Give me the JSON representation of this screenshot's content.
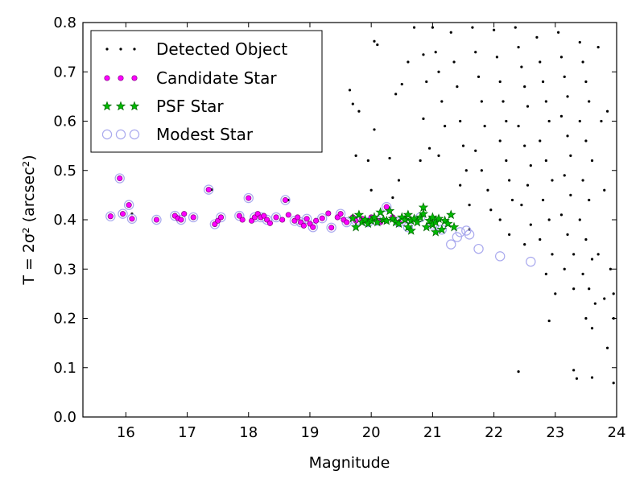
{
  "chart_data": {
    "type": "scatter",
    "xlabel": "Magnitude",
    "ylabel": "T = 2σ² (arcsec²)",
    "xlim": [
      15.3,
      24
    ],
    "ylim": [
      0.0,
      0.8
    ],
    "xticks": [
      "16",
      "17",
      "18",
      "19",
      "20",
      "21",
      "22",
      "23",
      "24"
    ],
    "yticks": [
      "0.0",
      "0.1",
      "0.2",
      "0.3",
      "0.4",
      "0.5",
      "0.6",
      "0.7",
      "0.8"
    ],
    "legend_position": "top-left",
    "grid": false,
    "series": [
      {
        "name": "Detected Object",
        "marker": "dot",
        "color": "#000000",
        "points": [
          [
            15.9,
            0.484
          ],
          [
            16.1,
            0.412
          ],
          [
            17.4,
            0.461
          ],
          [
            18.0,
            0.444
          ],
          [
            18.65,
            0.44
          ],
          [
            19.65,
            0.663
          ],
          [
            19.7,
            0.635
          ],
          [
            19.8,
            0.62
          ],
          [
            19.75,
            0.53
          ],
          [
            19.95,
            0.52
          ],
          [
            20.05,
            0.762
          ],
          [
            20.1,
            0.755
          ],
          [
            20.05,
            0.583
          ],
          [
            20.0,
            0.46
          ],
          [
            20.35,
            0.445
          ],
          [
            20.3,
            0.525
          ],
          [
            20.4,
            0.655
          ],
          [
            20.5,
            0.675
          ],
          [
            20.6,
            0.72
          ],
          [
            20.45,
            0.48
          ],
          [
            20.7,
            0.79
          ],
          [
            20.85,
            0.735
          ],
          [
            20.9,
            0.68
          ],
          [
            20.85,
            0.605
          ],
          [
            20.95,
            0.545
          ],
          [
            20.8,
            0.52
          ],
          [
            21.0,
            0.79
          ],
          [
            21.05,
            0.74
          ],
          [
            21.1,
            0.7
          ],
          [
            21.15,
            0.64
          ],
          [
            21.2,
            0.59
          ],
          [
            21.1,
            0.53
          ],
          [
            21.3,
            0.78
          ],
          [
            21.35,
            0.72
          ],
          [
            21.4,
            0.67
          ],
          [
            21.45,
            0.6
          ],
          [
            21.5,
            0.55
          ],
          [
            21.55,
            0.5
          ],
          [
            21.45,
            0.47
          ],
          [
            21.6,
            0.43
          ],
          [
            21.65,
            0.79
          ],
          [
            21.7,
            0.74
          ],
          [
            21.75,
            0.69
          ],
          [
            21.8,
            0.64
          ],
          [
            21.85,
            0.59
          ],
          [
            21.7,
            0.54
          ],
          [
            21.8,
            0.5
          ],
          [
            21.9,
            0.46
          ],
          [
            21.95,
            0.42
          ],
          [
            21.6,
            0.38
          ],
          [
            22.0,
            0.785
          ],
          [
            22.05,
            0.73
          ],
          [
            22.1,
            0.68
          ],
          [
            22.15,
            0.64
          ],
          [
            22.2,
            0.6
          ],
          [
            22.1,
            0.56
          ],
          [
            22.2,
            0.52
          ],
          [
            22.25,
            0.48
          ],
          [
            22.3,
            0.44
          ],
          [
            22.1,
            0.4
          ],
          [
            22.25,
            0.37
          ],
          [
            22.35,
            0.79
          ],
          [
            22.4,
            0.75
          ],
          [
            22.45,
            0.71
          ],
          [
            22.5,
            0.67
          ],
          [
            22.55,
            0.63
          ],
          [
            22.4,
            0.59
          ],
          [
            22.5,
            0.55
          ],
          [
            22.6,
            0.51
          ],
          [
            22.55,
            0.47
          ],
          [
            22.45,
            0.43
          ],
          [
            22.6,
            0.39
          ],
          [
            22.5,
            0.35
          ],
          [
            22.7,
            0.77
          ],
          [
            22.75,
            0.72
          ],
          [
            22.8,
            0.68
          ],
          [
            22.85,
            0.64
          ],
          [
            22.9,
            0.6
          ],
          [
            22.75,
            0.56
          ],
          [
            22.85,
            0.52
          ],
          [
            22.95,
            0.48
          ],
          [
            22.8,
            0.44
          ],
          [
            22.9,
            0.4
          ],
          [
            22.75,
            0.36
          ],
          [
            22.95,
            0.33
          ],
          [
            22.85,
            0.29
          ],
          [
            23.0,
            0.25
          ],
          [
            23.05,
            0.78
          ],
          [
            23.1,
            0.73
          ],
          [
            23.15,
            0.69
          ],
          [
            23.2,
            0.65
          ],
          [
            23.1,
            0.61
          ],
          [
            23.2,
            0.57
          ],
          [
            23.25,
            0.53
          ],
          [
            23.15,
            0.49
          ],
          [
            23.25,
            0.45
          ],
          [
            23.1,
            0.41
          ],
          [
            23.2,
            0.37
          ],
          [
            23.3,
            0.33
          ],
          [
            23.15,
            0.3
          ],
          [
            23.3,
            0.26
          ],
          [
            23.4,
            0.76
          ],
          [
            23.45,
            0.72
          ],
          [
            23.5,
            0.68
          ],
          [
            23.55,
            0.64
          ],
          [
            23.4,
            0.6
          ],
          [
            23.5,
            0.56
          ],
          [
            23.6,
            0.52
          ],
          [
            23.45,
            0.48
          ],
          [
            23.55,
            0.44
          ],
          [
            23.4,
            0.4
          ],
          [
            23.5,
            0.36
          ],
          [
            23.6,
            0.32
          ],
          [
            23.45,
            0.29
          ],
          [
            23.55,
            0.26
          ],
          [
            23.65,
            0.23
          ],
          [
            23.5,
            0.2
          ],
          [
            23.6,
            0.18
          ],
          [
            23.7,
            0.75
          ],
          [
            23.75,
            0.6
          ],
          [
            23.8,
            0.46
          ],
          [
            23.7,
            0.33
          ],
          [
            23.8,
            0.24
          ],
          [
            23.85,
            0.62
          ],
          [
            23.9,
            0.3
          ],
          [
            23.95,
            0.2
          ],
          [
            23.95,
            0.25
          ],
          [
            22.9,
            0.195
          ],
          [
            22.4,
            0.092
          ],
          [
            23.35,
            0.078
          ],
          [
            23.6,
            0.08
          ],
          [
            23.95,
            0.069
          ],
          [
            23.3,
            0.095
          ],
          [
            23.85,
            0.14
          ]
        ]
      },
      {
        "name": "Candidate Star",
        "marker": "circle",
        "color": "#ff00ff",
        "points": [
          [
            15.75,
            0.407
          ],
          [
            15.9,
            0.484
          ],
          [
            15.95,
            0.412
          ],
          [
            16.05,
            0.43
          ],
          [
            16.1,
            0.402
          ],
          [
            16.5,
            0.4
          ],
          [
            16.8,
            0.408
          ],
          [
            16.85,
            0.403
          ],
          [
            16.9,
            0.4
          ],
          [
            16.95,
            0.412
          ],
          [
            17.1,
            0.405
          ],
          [
            17.35,
            0.461
          ],
          [
            17.45,
            0.391
          ],
          [
            17.5,
            0.398
          ],
          [
            17.55,
            0.405
          ],
          [
            17.85,
            0.408
          ],
          [
            17.9,
            0.4
          ],
          [
            18.0,
            0.444
          ],
          [
            18.05,
            0.398
          ],
          [
            18.1,
            0.405
          ],
          [
            18.15,
            0.412
          ],
          [
            18.2,
            0.405
          ],
          [
            18.25,
            0.408
          ],
          [
            18.3,
            0.4
          ],
          [
            18.35,
            0.393
          ],
          [
            18.45,
            0.405
          ],
          [
            18.55,
            0.4
          ],
          [
            18.6,
            0.44
          ],
          [
            18.65,
            0.41
          ],
          [
            18.75,
            0.398
          ],
          [
            18.8,
            0.405
          ],
          [
            18.85,
            0.395
          ],
          [
            18.9,
            0.388
          ],
          [
            18.95,
            0.402
          ],
          [
            19.0,
            0.392
          ],
          [
            19.05,
            0.385
          ],
          [
            19.1,
            0.398
          ],
          [
            19.2,
            0.403
          ],
          [
            19.3,
            0.413
          ],
          [
            19.35,
            0.384
          ],
          [
            19.45,
            0.405
          ],
          [
            19.5,
            0.412
          ],
          [
            19.55,
            0.4
          ],
          [
            19.6,
            0.395
          ],
          [
            19.7,
            0.405
          ],
          [
            19.75,
            0.398
          ],
          [
            19.85,
            0.402
          ],
          [
            19.95,
            0.395
          ],
          [
            20.0,
            0.405
          ],
          [
            20.1,
            0.398
          ],
          [
            20.15,
            0.395
          ],
          [
            20.25,
            0.426
          ],
          [
            20.35,
            0.405
          ],
          [
            20.45,
            0.395
          ],
          [
            20.55,
            0.4
          ]
        ]
      },
      {
        "name": "PSF Star",
        "marker": "star",
        "color": "#00aa00",
        "points": [
          [
            19.7,
            0.403
          ],
          [
            19.75,
            0.385
          ],
          [
            19.8,
            0.41
          ],
          [
            19.85,
            0.395
          ],
          [
            19.9,
            0.4
          ],
          [
            19.95,
            0.392
          ],
          [
            20.0,
            0.398
          ],
          [
            20.05,
            0.405
          ],
          [
            20.1,
            0.395
          ],
          [
            20.15,
            0.415
          ],
          [
            20.2,
            0.4
          ],
          [
            20.25,
            0.398
          ],
          [
            20.3,
            0.418
          ],
          [
            20.35,
            0.402
          ],
          [
            20.4,
            0.395
          ],
          [
            20.45,
            0.392
          ],
          [
            20.5,
            0.405
          ],
          [
            20.55,
            0.4
          ],
          [
            20.6,
            0.385
          ],
          [
            20.6,
            0.41
          ],
          [
            20.65,
            0.398
          ],
          [
            20.7,
            0.402
          ],
          [
            20.75,
            0.395
          ],
          [
            20.8,
            0.405
          ],
          [
            20.85,
            0.412
          ],
          [
            20.85,
            0.425
          ],
          [
            20.9,
            0.385
          ],
          [
            20.95,
            0.398
          ],
          [
            21.0,
            0.405
          ],
          [
            21.0,
            0.39
          ],
          [
            21.05,
            0.395
          ],
          [
            21.1,
            0.402
          ],
          [
            21.15,
            0.38
          ],
          [
            21.2,
            0.398
          ],
          [
            21.25,
            0.392
          ],
          [
            21.3,
            0.41
          ],
          [
            21.35,
            0.385
          ],
          [
            21.05,
            0.375
          ],
          [
            20.65,
            0.378
          ]
        ]
      },
      {
        "name": "Modest Star",
        "marker": "open-circle",
        "color": "#aaaaee",
        "points": [
          [
            15.75,
            0.407
          ],
          [
            15.9,
            0.484
          ],
          [
            15.95,
            0.412
          ],
          [
            16.05,
            0.43
          ],
          [
            16.1,
            0.402
          ],
          [
            16.5,
            0.4
          ],
          [
            16.8,
            0.408
          ],
          [
            16.9,
            0.4
          ],
          [
            17.1,
            0.405
          ],
          [
            17.35,
            0.461
          ],
          [
            17.45,
            0.391
          ],
          [
            17.55,
            0.405
          ],
          [
            17.85,
            0.408
          ],
          [
            18.0,
            0.444
          ],
          [
            18.1,
            0.405
          ],
          [
            18.2,
            0.405
          ],
          [
            18.3,
            0.4
          ],
          [
            18.45,
            0.405
          ],
          [
            18.6,
            0.44
          ],
          [
            18.75,
            0.398
          ],
          [
            18.85,
            0.395
          ],
          [
            18.95,
            0.402
          ],
          [
            19.05,
            0.385
          ],
          [
            19.2,
            0.403
          ],
          [
            19.35,
            0.384
          ],
          [
            19.5,
            0.412
          ],
          [
            19.6,
            0.395
          ],
          [
            19.75,
            0.398
          ],
          [
            19.95,
            0.395
          ],
          [
            20.1,
            0.398
          ],
          [
            20.25,
            0.426
          ],
          [
            20.45,
            0.395
          ],
          [
            20.6,
            0.385
          ],
          [
            20.8,
            0.405
          ],
          [
            21.0,
            0.39
          ],
          [
            21.15,
            0.38
          ],
          [
            21.3,
            0.35
          ],
          [
            21.4,
            0.365
          ],
          [
            21.45,
            0.375
          ],
          [
            21.55,
            0.378
          ],
          [
            21.6,
            0.37
          ],
          [
            21.75,
            0.341
          ],
          [
            22.1,
            0.326
          ],
          [
            22.6,
            0.315
          ]
        ]
      }
    ]
  }
}
